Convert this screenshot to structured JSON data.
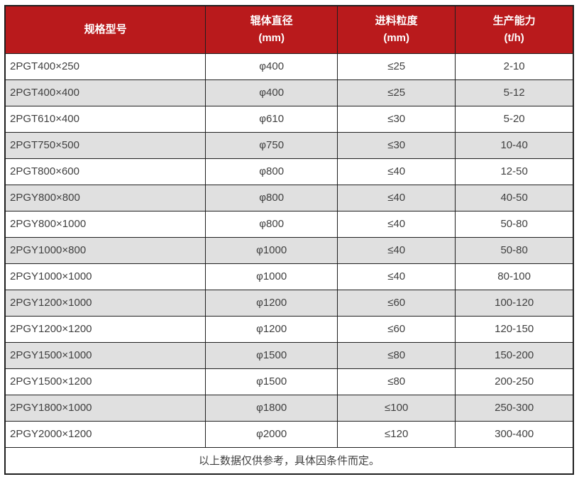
{
  "table": {
    "columns": [
      {
        "label": "规格型号",
        "unit": ""
      },
      {
        "label": "辊体直径",
        "unit": "(mm)"
      },
      {
        "label": "进料粒度",
        "unit": "(mm)"
      },
      {
        "label": "生产能力",
        "unit": "(t/h)"
      }
    ],
    "rows": [
      [
        "2PGT400×250",
        "φ400",
        "≤25",
        "2-10"
      ],
      [
        "2PGT400×400",
        "φ400",
        "≤25",
        "5-12"
      ],
      [
        "2PGT610×400",
        "φ610",
        "≤30",
        "5-20"
      ],
      [
        "2PGT750×500",
        "φ750",
        "≤30",
        "10-40"
      ],
      [
        "2PGT800×600",
        "φ800",
        "≤40",
        "12-50"
      ],
      [
        "2PGY800×800",
        "φ800",
        "≤40",
        "40-50"
      ],
      [
        "2PGY800×1000",
        "φ800",
        "≤40",
        "50-80"
      ],
      [
        "2PGY1000×800",
        "φ1000",
        "≤40",
        "50-80"
      ],
      [
        "2PGY1000×1000",
        "φ1000",
        "≤40",
        "80-100"
      ],
      [
        "2PGY1200×1000",
        "φ1200",
        "≤60",
        "100-120"
      ],
      [
        "2PGY1200×1200",
        "φ1200",
        "≤60",
        "120-150"
      ],
      [
        "2PGY1500×1000",
        "φ1500",
        "≤80",
        "150-200"
      ],
      [
        "2PGY1500×1200",
        "φ1500",
        "≤80",
        "200-250"
      ],
      [
        "2PGY1800×1000",
        "φ1800",
        "≤100",
        "250-300"
      ],
      [
        "2PGY2000×1200",
        "φ2000",
        "≤120",
        "300-400"
      ]
    ],
    "footnote": "以上数据仅供参考，具体因条件而定。"
  },
  "colors": {
    "header_bg": "#b91a1c",
    "header_text": "#ffffff",
    "row_alt_bg": "#e0e0e0",
    "border": "#1f1f1f",
    "text": "#404040"
  }
}
